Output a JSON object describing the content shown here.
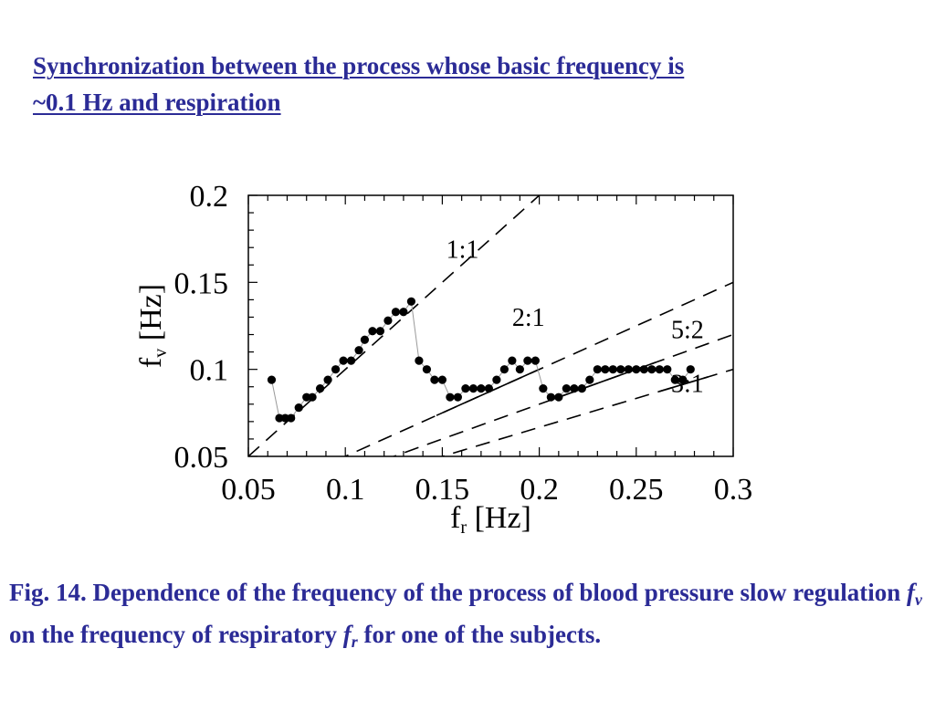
{
  "slide": {
    "title_line1": "Synchronization between the process whose basic frequency is",
    "title_line2": "~0.1 Hz and respiration",
    "caption": {
      "part1": "Fig. 14. Dependence of the frequency of the process of blood pressure slow regulation ",
      "fv_main": "f",
      "fv_sub": "v",
      "part2": " on the frequency of respiratory ",
      "fr_main": "f",
      "fr_sub": "r",
      "part3": " for one of the subjects."
    },
    "colors": {
      "text": "#2b2b96",
      "axis": "#000000",
      "trace": "#999999"
    }
  },
  "chart_data": {
    "type": "scatter",
    "xlabel_main": "f",
    "xlabel_sub": "r",
    "xlabel_unit": "[Hz]",
    "ylabel_main": "f",
    "ylabel_sub": "v",
    "ylabel_unit": "[Hz]",
    "xlim": [
      0.05,
      0.3
    ],
    "ylim": [
      0.05,
      0.2
    ],
    "x_ticks": [
      "0.05",
      "0.1",
      "0.15",
      "0.2",
      "0.25",
      "0.3"
    ],
    "y_ticks": [
      "0.05",
      "0.1",
      "0.15",
      "0.2"
    ],
    "reference_lines": [
      {
        "label": "1:1",
        "ratio": 1
      },
      {
        "label": "2:1",
        "ratio": 2
      },
      {
        "label": "5:2",
        "ratio": 2.5
      },
      {
        "label": "3:1",
        "ratio": 3
      }
    ],
    "series": [
      {
        "points": [
          [
            0.062,
            0.094
          ],
          [
            0.066,
            0.072
          ],
          [
            0.069,
            0.072
          ],
          [
            0.072,
            0.072
          ],
          [
            0.076,
            0.078
          ],
          [
            0.08,
            0.084
          ],
          [
            0.083,
            0.084
          ],
          [
            0.087,
            0.089
          ],
          [
            0.091,
            0.094
          ],
          [
            0.095,
            0.1
          ],
          [
            0.099,
            0.105
          ],
          [
            0.103,
            0.105
          ],
          [
            0.107,
            0.111
          ],
          [
            0.11,
            0.117
          ],
          [
            0.114,
            0.122
          ],
          [
            0.118,
            0.122
          ],
          [
            0.122,
            0.128
          ],
          [
            0.126,
            0.133
          ],
          [
            0.13,
            0.133
          ],
          [
            0.134,
            0.139
          ],
          [
            0.138,
            0.105
          ],
          [
            0.142,
            0.1
          ],
          [
            0.146,
            0.094
          ],
          [
            0.15,
            0.094
          ],
          [
            0.154,
            0.084
          ],
          [
            0.158,
            0.084
          ],
          [
            0.162,
            0.089
          ],
          [
            0.166,
            0.089
          ],
          [
            0.17,
            0.089
          ],
          [
            0.174,
            0.089
          ],
          [
            0.178,
            0.094
          ],
          [
            0.182,
            0.1
          ],
          [
            0.186,
            0.105
          ],
          [
            0.19,
            0.1
          ],
          [
            0.194,
            0.105
          ],
          [
            0.198,
            0.105
          ],
          [
            0.202,
            0.089
          ],
          [
            0.206,
            0.084
          ],
          [
            0.21,
            0.084
          ],
          [
            0.214,
            0.089
          ],
          [
            0.218,
            0.089
          ],
          [
            0.222,
            0.089
          ],
          [
            0.226,
            0.094
          ],
          [
            0.23,
            0.1
          ],
          [
            0.234,
            0.1
          ],
          [
            0.238,
            0.1
          ],
          [
            0.242,
            0.1
          ],
          [
            0.246,
            0.1
          ],
          [
            0.25,
            0.1
          ],
          [
            0.254,
            0.1
          ],
          [
            0.258,
            0.1
          ],
          [
            0.262,
            0.1
          ],
          [
            0.266,
            0.1
          ],
          [
            0.27,
            0.094
          ],
          [
            0.274,
            0.094
          ],
          [
            0.278,
            0.1
          ]
        ]
      }
    ],
    "segments": [
      {
        "x": [
          0.147,
          0.2
        ],
        "ratio": 2
      },
      {
        "x": [
          0.207,
          0.26
        ],
        "ratio": 2.5
      },
      {
        "x": [
          0.262,
          0.287
        ],
        "ratio": 3
      }
    ]
  }
}
